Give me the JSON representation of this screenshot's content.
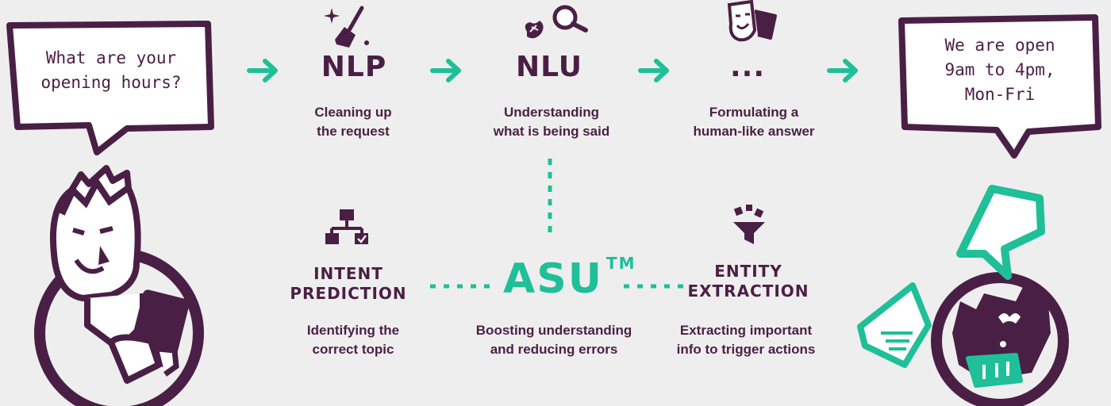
{
  "colors": {
    "purple": "#4a1f45",
    "teal": "#1fbf98",
    "background": "#efeeee"
  },
  "user_bubble": {
    "line1": "What are your",
    "line2": "opening hours?"
  },
  "bot_bubble": {
    "line1": "We are open",
    "line2": "9am to 4pm,",
    "line3": "Mon-Fri"
  },
  "stages": [
    {
      "title": "NLP",
      "icon": "broom-icon",
      "desc1": "Cleaning up",
      "desc2": "the request"
    },
    {
      "title": "NLU",
      "icon": "magnifier-icon",
      "desc1": "Understanding",
      "desc2": "what is being said"
    },
    {
      "title": "...",
      "icon": "masks-icon",
      "desc1": "Formulating a",
      "desc2": "human-like answer"
    }
  ],
  "bottom": {
    "intent": {
      "title1": "INTENT",
      "title2": "PREDICTION",
      "icon": "sitemap-icon",
      "desc1": "Identifying the",
      "desc2": "correct topic"
    },
    "asu": {
      "title": "ASU",
      "tm": "TM",
      "desc1": "Boosting understanding",
      "desc2": "and reducing errors"
    },
    "entity": {
      "title1": "ENTITY",
      "title2": "EXTRACTION",
      "icon": "funnel-icon",
      "desc1": "Extracting important",
      "desc2": "info to trigger actions"
    }
  }
}
